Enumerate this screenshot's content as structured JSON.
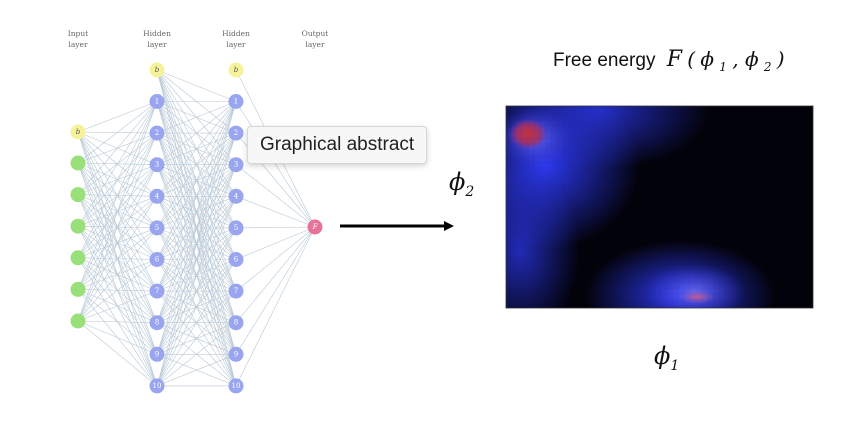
{
  "network": {
    "layers": [
      {
        "title_line1": "Input",
        "title_line2": "layer",
        "bias_label": "b",
        "units": [
          "",
          "",
          "",
          "",
          "",
          ""
        ]
      },
      {
        "title_line1": "Hidden",
        "title_line2": "layer",
        "bias_label": "b",
        "units": [
          "1",
          "2",
          "3",
          "4",
          "5",
          "6",
          "7",
          "8",
          "9",
          "10"
        ]
      },
      {
        "title_line1": "Hidden",
        "title_line2": "layer",
        "bias_label": "b",
        "units": [
          "1",
          "2",
          "3",
          "4",
          "5",
          "6",
          "7",
          "8",
          "9",
          "10"
        ]
      },
      {
        "title_line1": "Output",
        "title_line2": "layer",
        "bias_label": "",
        "units": [
          "F"
        ]
      }
    ],
    "colors": {
      "input": "#99e07a",
      "bias": "#f5f29a",
      "hidden": "#9aa5f0",
      "output": "#e8739a",
      "edge": "#b9c9d6"
    }
  },
  "plot": {
    "title_prefix": "Free energy",
    "title_func": "F",
    "title_args_open": "(",
    "phi": "ϕ",
    "sub1": "1",
    "sub2": "2",
    "comma": ", ",
    "title_args_close": ")",
    "ylabel_symbol": "ϕ",
    "ylabel_sub": "2",
    "xlabel_symbol": "ϕ",
    "xlabel_sub": "1"
  },
  "tooltip": {
    "text": "Graphical abstract"
  }
}
